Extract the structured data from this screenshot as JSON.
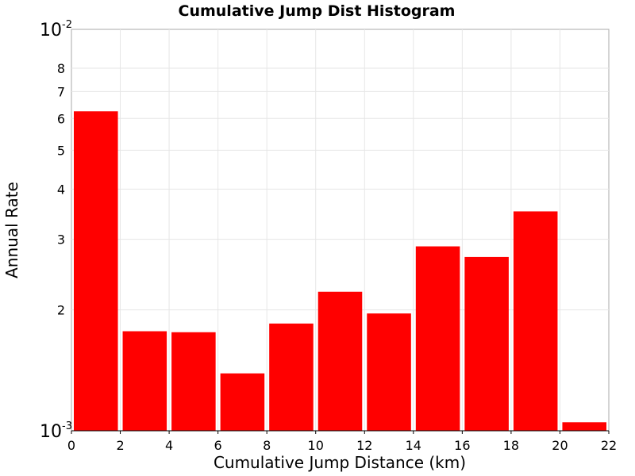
{
  "chart_data": {
    "type": "bar",
    "title": "Cumulative Jump Dist Histogram",
    "xlabel": "Cumulative Jump Distance (km)",
    "ylabel": "Annual Rate",
    "bar_color": "#ff0000",
    "grid": true,
    "y_scale": "log",
    "xlim": [
      0,
      22
    ],
    "ylim": [
      0.001,
      0.01
    ],
    "x_ticks": [
      "0",
      "2",
      "4",
      "6",
      "8",
      "10",
      "12",
      "14",
      "16",
      "18",
      "20",
      "22"
    ],
    "y_minor_ticks": [
      {
        "value": 0.002,
        "label": "2"
      },
      {
        "value": 0.003,
        "label": "3"
      },
      {
        "value": 0.004,
        "label": "4"
      },
      {
        "value": 0.005,
        "label": "5"
      },
      {
        "value": 0.006,
        "label": "6"
      },
      {
        "value": 0.007,
        "label": "7"
      },
      {
        "value": 0.008,
        "label": "8"
      }
    ],
    "y_major_ticks": [
      {
        "value": 0.001,
        "base": "10",
        "exp": "-3"
      },
      {
        "value": 0.01,
        "base": "10",
        "exp": "-2"
      }
    ],
    "bins": [
      {
        "x0": 0,
        "x1": 2,
        "value": 0.00625
      },
      {
        "x0": 2,
        "x1": 4,
        "value": 0.00177
      },
      {
        "x0": 4,
        "x1": 6,
        "value": 0.00176
      },
      {
        "x0": 6,
        "x1": 8,
        "value": 0.00139
      },
      {
        "x0": 8,
        "x1": 10,
        "value": 0.00185
      },
      {
        "x0": 10,
        "x1": 12,
        "value": 0.00222
      },
      {
        "x0": 12,
        "x1": 14,
        "value": 0.00196
      },
      {
        "x0": 14,
        "x1": 16,
        "value": 0.00288
      },
      {
        "x0": 16,
        "x1": 18,
        "value": 0.00271
      },
      {
        "x0": 18,
        "x1": 20,
        "value": 0.00352
      },
      {
        "x0": 20,
        "x1": 22,
        "value": 0.00105
      }
    ]
  }
}
